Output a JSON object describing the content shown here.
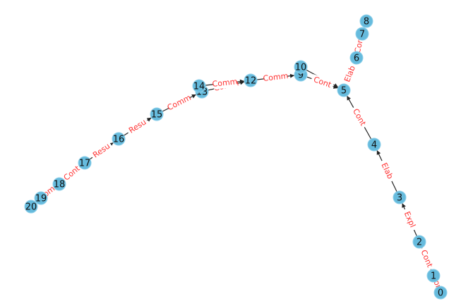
{
  "colors": {
    "node": "#66bbdd",
    "edge": "#222222",
    "label": "#ff3333"
  },
  "nodes": [
    {
      "id": "0",
      "label": "0"
    },
    {
      "id": "1",
      "label": "1"
    },
    {
      "id": "2",
      "label": "2"
    },
    {
      "id": "3",
      "label": "3"
    },
    {
      "id": "4",
      "label": "4"
    },
    {
      "id": "5",
      "label": "5"
    },
    {
      "id": "6",
      "label": "6"
    },
    {
      "id": "7",
      "label": "7"
    },
    {
      "id": "8",
      "label": "8"
    },
    {
      "id": "9",
      "label": "9"
    },
    {
      "id": "10",
      "label": "10"
    },
    {
      "id": "12",
      "label": "12"
    },
    {
      "id": "13",
      "label": "13"
    },
    {
      "id": "14",
      "label": "14"
    },
    {
      "id": "15",
      "label": "15"
    },
    {
      "id": "16",
      "label": "16"
    },
    {
      "id": "17",
      "label": "17"
    },
    {
      "id": "18",
      "label": "18"
    },
    {
      "id": "19",
      "label": "19"
    },
    {
      "id": "20",
      "label": "20"
    }
  ],
  "edges": [
    {
      "from": "0",
      "to": "1",
      "label": "Cont"
    },
    {
      "from": "1",
      "to": "2",
      "label": "Cont"
    },
    {
      "from": "2",
      "to": "3",
      "label": "Expl"
    },
    {
      "from": "3",
      "to": "4",
      "label": "Elab"
    },
    {
      "from": "4",
      "to": "5",
      "label": "Cont"
    },
    {
      "from": "5",
      "to": "6",
      "label": "Elab"
    },
    {
      "from": "6",
      "to": "7",
      "label": "Con"
    },
    {
      "from": "7",
      "to": "8",
      "label": ""
    },
    {
      "from": "9",
      "to": "5",
      "label": "Cont"
    },
    {
      "from": "10",
      "to": "5",
      "label": ""
    },
    {
      "from": "12",
      "to": "9",
      "label": "Comm"
    },
    {
      "from": "13",
      "to": "12",
      "label": "Comm"
    },
    {
      "from": "14",
      "to": "12",
      "label": "Comm"
    },
    {
      "from": "15",
      "to": "13",
      "label": "Comm"
    },
    {
      "from": "16",
      "to": "15",
      "label": "Resu"
    },
    {
      "from": "17",
      "to": "16",
      "label": "Resu"
    },
    {
      "from": "18",
      "to": "17",
      "label": "Cont"
    },
    {
      "from": "19",
      "to": "18",
      "label": "Comm"
    },
    {
      "from": "20",
      "to": "19",
      "label": ""
    }
  ]
}
